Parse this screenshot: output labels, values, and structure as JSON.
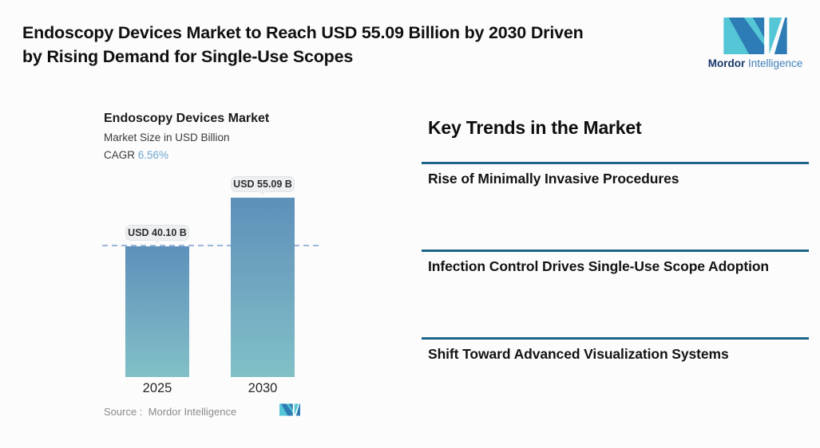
{
  "header": {
    "title_lines": [
      "Endoscopy Devices Market to Reach USD 55.09 Billion by 2030 Driven",
      "by Rising Demand for Single-Use Scopes"
    ],
    "brand": {
      "name_bold": "Mordor",
      "name_light": "Intelligence",
      "icon": "mordor-m-icon",
      "icon_color_blue": "#2e7cb5",
      "icon_color_teal": "#54c6d6",
      "text_color_dark": "#19376b",
      "text_color_light": "#4281b8"
    }
  },
  "chart_panel": {
    "title": "Endoscopy Devices Market",
    "subtitle": "Market Size in USD Billion",
    "cagr_label": "CAGR",
    "cagr_value": "6.56%",
    "source_label": "Source :",
    "source_value": "Mordor Intelligence",
    "source_icon": "mordor-m-mini-icon"
  },
  "chart_data": {
    "type": "bar",
    "title": "Endoscopy Devices Market",
    "subtitle": "Market Size in USD Billion",
    "unit": "USD Billion",
    "cagr": "6.56%",
    "categories": [
      "2025",
      "2030"
    ],
    "values": [
      40.1,
      55.09
    ],
    "value_labels": [
      "USD 40.10 B",
      "USD 55.09 B"
    ],
    "ylim": [
      0,
      60
    ],
    "grid": false,
    "legend": "none",
    "reference_line": {
      "value": 40.1,
      "style": "dashed",
      "color": "#9cb6d8"
    },
    "bar_gradient_top": "#5d90ba",
    "bar_gradient_bottom": "#82c0c7"
  },
  "trends": {
    "heading": "Key Trends in the Market",
    "divider_color": "#1e6488",
    "items": [
      {
        "label": "Rise of Minimally Invasive Procedures"
      },
      {
        "label": "Infection Control Drives Single-Use Scope Adoption"
      },
      {
        "label": "Shift Toward Advanced Visualization Systems"
      }
    ]
  }
}
